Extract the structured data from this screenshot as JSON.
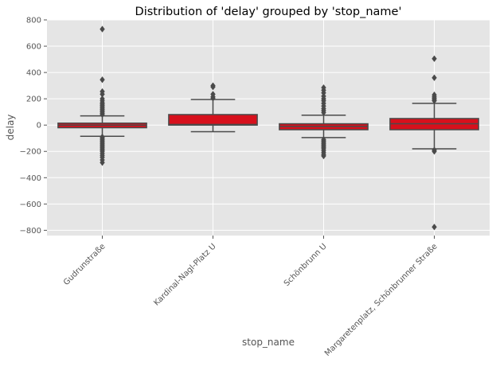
{
  "chart_data": {
    "type": "boxplot",
    "title": "Distribution of 'delay' grouped by 'stop_name'",
    "xlabel": "stop_name",
    "ylabel": "delay",
    "ylim": [
      -840,
      800
    ],
    "yticks": [
      -800,
      -600,
      -400,
      -200,
      0,
      200,
      400,
      600,
      800
    ],
    "grid": true,
    "colors": {
      "box_fill": "#d7101c",
      "box_edge": "#4a4a4a",
      "plot_bg": "#e5e5e5",
      "grid": "#ffffff",
      "text": "#555555"
    },
    "categories": [
      "Gudrunstraße",
      "Kardinal-Nagl-Platz U",
      "Schönbrunn U",
      "Margaretenplatz, Schönbrunner Straße"
    ],
    "boxes": [
      {
        "category": "Gudrunstraße",
        "whisker_low": -85,
        "q1": -20,
        "median": 0,
        "q3": 15,
        "whisker_high": 70,
        "outliers": [
          730,
          345,
          255,
          235,
          200,
          185,
          170,
          160,
          150,
          140,
          130,
          120,
          110,
          100,
          90,
          80,
          -90,
          -100,
          -110,
          -120,
          -130,
          -140,
          -150,
          -160,
          -170,
          -180,
          -190,
          -200,
          -215,
          -230,
          -245,
          -265,
          -285
        ]
      },
      {
        "category": "Kardinal-Nagl-Platz U",
        "whisker_low": -50,
        "q1": 0,
        "median": 5,
        "q3": 80,
        "whisker_high": 195,
        "outliers": [
          300,
          290,
          235,
          215,
          205
        ]
      },
      {
        "category": "Schönbrunn U",
        "whisker_low": -95,
        "q1": -35,
        "median": -10,
        "q3": 10,
        "whisker_high": 75,
        "outliers": [
          285,
          265,
          245,
          220,
          200,
          185,
          165,
          145,
          125,
          110,
          95,
          -110,
          -120,
          -130,
          -140,
          -150,
          -160,
          -170,
          -180,
          -195,
          -210,
          -225,
          -235
        ]
      },
      {
        "category": "Margaretenplatz, Schönbrunner Straße",
        "whisker_low": -180,
        "q1": -35,
        "median": 10,
        "q3": 50,
        "whisker_high": 165,
        "outliers": [
          505,
          360,
          230,
          215,
          205,
          195,
          185,
          -190,
          -200,
          -775
        ]
      }
    ]
  }
}
